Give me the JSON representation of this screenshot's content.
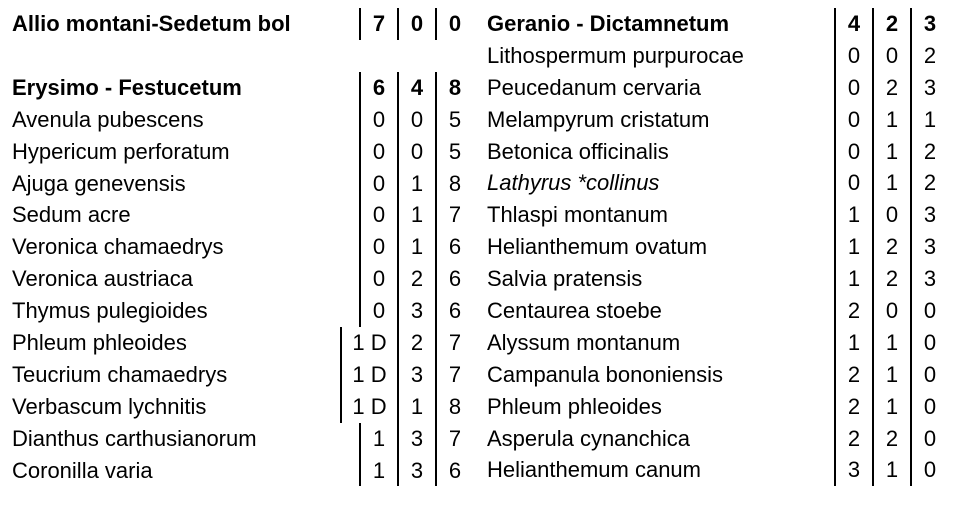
{
  "left": [
    {
      "name": "Allio montani-Sedetum bol",
      "vals": [
        "7",
        "0",
        "0"
      ],
      "bold": true,
      "italic": false,
      "wideFirst": false
    },
    {
      "spacer": true
    },
    {
      "name": "Erysimo - Festucetum",
      "vals": [
        "6",
        "4",
        "8"
      ],
      "bold": true,
      "italic": false,
      "wideFirst": false
    },
    {
      "name": "Avenula pubescens",
      "vals": [
        "0",
        "0",
        "5"
      ],
      "bold": false,
      "italic": false,
      "wideFirst": false
    },
    {
      "name": "Hypericum perforatum",
      "vals": [
        "0",
        "0",
        "5"
      ],
      "bold": false,
      "italic": false,
      "wideFirst": false
    },
    {
      "name": "Ajuga genevensis",
      "vals": [
        "0",
        "1",
        "8"
      ],
      "bold": false,
      "italic": false,
      "wideFirst": false
    },
    {
      "name": "Sedum acre",
      "vals": [
        "0",
        "1",
        "7"
      ],
      "bold": false,
      "italic": false,
      "wideFirst": false
    },
    {
      "name": "Veronica chamaedrys",
      "vals": [
        "0",
        "1",
        "6"
      ],
      "bold": false,
      "italic": false,
      "wideFirst": false
    },
    {
      "name": "Veronica austriaca",
      "vals": [
        "0",
        "2",
        "6"
      ],
      "bold": false,
      "italic": false,
      "wideFirst": false
    },
    {
      "name": "Thymus pulegioides",
      "vals": [
        "0",
        "3",
        "6"
      ],
      "bold": false,
      "italic": false,
      "wideFirst": false
    },
    {
      "name": "Phleum phleoides",
      "vals": [
        "1 D",
        "2",
        "7"
      ],
      "bold": false,
      "italic": false,
      "wideFirst": true
    },
    {
      "name": "Teucrium chamaedrys",
      "vals": [
        "1 D",
        "3",
        "7"
      ],
      "bold": false,
      "italic": false,
      "wideFirst": true
    },
    {
      "name": "Verbascum lychnitis",
      "vals": [
        "1 D",
        "1",
        "8"
      ],
      "bold": false,
      "italic": false,
      "wideFirst": true
    },
    {
      "name": "Dianthus carthusianorum",
      "vals": [
        "1",
        "3",
        "7"
      ],
      "bold": false,
      "italic": false,
      "wideFirst": false
    },
    {
      "name": "Coronilla varia",
      "vals": [
        "1",
        "3",
        "6"
      ],
      "bold": false,
      "italic": false,
      "wideFirst": false
    }
  ],
  "right": [
    {
      "name": "Geranio - Dictamnetum",
      "vals": [
        "4",
        "2",
        "3"
      ],
      "bold": true,
      "italic": false,
      "wideFirst": false
    },
    {
      "name": "Lithospermum purpurocae",
      "vals": [
        "0",
        "0",
        "2"
      ],
      "bold": false,
      "italic": false,
      "wideFirst": false
    },
    {
      "name": "Peucedanum cervaria",
      "vals": [
        "0",
        "2",
        "3"
      ],
      "bold": false,
      "italic": false,
      "wideFirst": false
    },
    {
      "name": "Melampyrum cristatum",
      "vals": [
        "0",
        "1",
        "1"
      ],
      "bold": false,
      "italic": false,
      "wideFirst": false
    },
    {
      "name": "Betonica officinalis",
      "vals": [
        "0",
        "1",
        "2"
      ],
      "bold": false,
      "italic": false,
      "wideFirst": false
    },
    {
      "name": "Lathyrus *collinus",
      "vals": [
        "0",
        "1",
        "2"
      ],
      "bold": false,
      "italic": true,
      "wideFirst": false
    },
    {
      "name": "Thlaspi montanum",
      "vals": [
        "1",
        "0",
        "3"
      ],
      "bold": false,
      "italic": false,
      "wideFirst": false
    },
    {
      "name": "Helianthemum ovatum",
      "vals": [
        "1",
        "2",
        "3"
      ],
      "bold": false,
      "italic": false,
      "wideFirst": false
    },
    {
      "name": "Salvia pratensis",
      "vals": [
        "1",
        "2",
        "3"
      ],
      "bold": false,
      "italic": false,
      "wideFirst": false
    },
    {
      "name": "Centaurea stoebe",
      "vals": [
        "2",
        "0",
        "0"
      ],
      "bold": false,
      "italic": false,
      "wideFirst": false
    },
    {
      "name": "Alyssum montanum",
      "vals": [
        "1",
        "1",
        "0"
      ],
      "bold": false,
      "italic": false,
      "wideFirst": false
    },
    {
      "name": "Campanula bononiensis",
      "vals": [
        "2",
        "1",
        "0"
      ],
      "bold": false,
      "italic": false,
      "wideFirst": false
    },
    {
      "name": "Phleum phleoides",
      "vals": [
        "2",
        "1",
        "0"
      ],
      "bold": false,
      "italic": false,
      "wideFirst": false
    },
    {
      "name": "Asperula cynanchica",
      "vals": [
        "2",
        "2",
        "0"
      ],
      "bold": false,
      "italic": false,
      "wideFirst": false
    },
    {
      "name": "Helianthemum canum",
      "vals": [
        "3",
        "1",
        "0"
      ],
      "bold": false,
      "italic": false,
      "wideFirst": false
    }
  ]
}
